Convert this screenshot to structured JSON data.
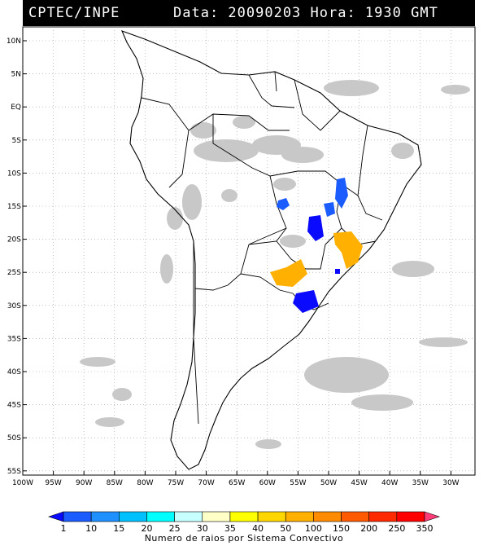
{
  "header": {
    "source": "CPTEC/INPE",
    "date_time": "Data: 20090203 Hora: 1930 GMT"
  },
  "map": {
    "lat_labels": [
      "10N",
      "5N",
      "EQ",
      "5S",
      "10S",
      "15S",
      "20S",
      "25S",
      "30S",
      "35S",
      "40S",
      "45S",
      "50S",
      "55S"
    ],
    "lon_labels": [
      "100W",
      "95W",
      "90W",
      "85W",
      "80W",
      "75W",
      "70W",
      "65W",
      "60W",
      "55W",
      "50W",
      "45W",
      "40W",
      "35W",
      "30W"
    ],
    "cloud_color": "#c8c8c8",
    "border_color": "#000000"
  },
  "colorbar": {
    "title": "Numero de raios por Sistema Convectivo",
    "labels": [
      "1",
      "10",
      "15",
      "20",
      "25",
      "30",
      "35",
      "40",
      "50",
      "100",
      "150",
      "200",
      "250",
      "350"
    ],
    "colors": [
      "#0a0aff",
      "#1a5cff",
      "#1e90ff",
      "#00c0ff",
      "#00ffff",
      "#c8ffff",
      "#ffffc8",
      "#ffff00",
      "#ffd700",
      "#ffb000",
      "#ff8c00",
      "#ff5a00",
      "#ff2a00",
      "#ff0000",
      "#ff3c78"
    ]
  },
  "systems": [
    {
      "color": "#1a5cff",
      "rays": "10"
    },
    {
      "color": "#0a0aff",
      "rays": "1"
    },
    {
      "color": "#ffb000",
      "rays": "100"
    }
  ]
}
